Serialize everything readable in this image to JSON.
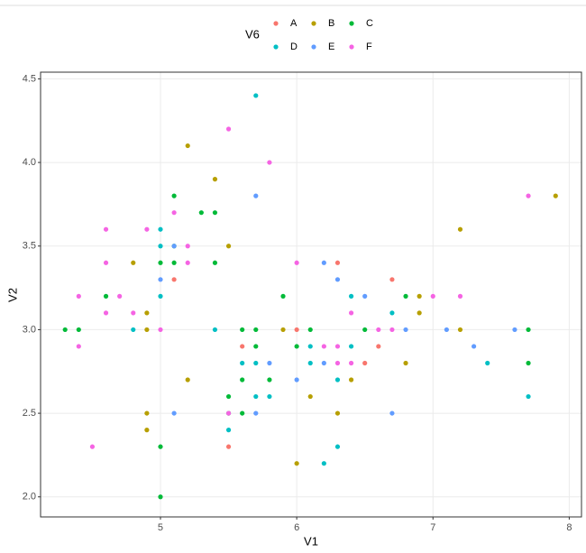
{
  "chart_data": {
    "type": "scatter",
    "x_label": "V1",
    "y_label": "V2",
    "legend_title": "V6",
    "xlim": [
      4.12,
      8.09
    ],
    "ylim": [
      1.88,
      4.54
    ],
    "xticks": [
      5,
      6,
      7,
      8
    ],
    "yticks": [
      {
        "value": 2,
        "label": "2.0"
      },
      2.5,
      {
        "value": 3,
        "label": "3.0"
      },
      3.5,
      {
        "value": 4,
        "label": "4.0"
      },
      4.5
    ],
    "grid": true,
    "series": [
      {
        "name": "A",
        "color": "#F8766D",
        "x": [
          5.1,
          5.6,
          5.5,
          6.0,
          6.3,
          6.5,
          6.6,
          6.7
        ],
        "y": [
          3.3,
          2.9,
          2.3,
          3.0,
          3.4,
          2.8,
          2.9,
          3.3
        ]
      },
      {
        "name": "B",
        "color": "#B79F00",
        "x": [
          5.2,
          5.4,
          5.5,
          4.8,
          4.9,
          4.9,
          4.9,
          4.9,
          5.2,
          5.9,
          6.0,
          6.1,
          6.3,
          6.4,
          6.8,
          6.9,
          6.9,
          7.2,
          7.2,
          7.9
        ],
        "y": [
          4.1,
          3.9,
          3.5,
          3.4,
          3.1,
          3.0,
          2.5,
          2.4,
          2.7,
          3.0,
          2.2,
          2.6,
          2.5,
          2.7,
          2.8,
          3.1,
          3.2,
          3.6,
          3.0,
          3.8
        ]
      },
      {
        "name": "C",
        "color": "#00BA38",
        "x": [
          4.3,
          4.4,
          4.6,
          5.0,
          5.0,
          5.0,
          5.1,
          5.1,
          5.1,
          5.3,
          5.4,
          5.4,
          5.5,
          5.5,
          5.6,
          5.6,
          5.6,
          5.7,
          5.7,
          5.8,
          5.9,
          6.0,
          6.1,
          6.5,
          6.8,
          7.7,
          7.7
        ],
        "y": [
          3.0,
          3.0,
          3.2,
          3.4,
          2.3,
          2.0,
          3.8,
          3.5,
          3.4,
          3.7,
          3.7,
          3.4,
          2.6,
          2.5,
          3.0,
          2.7,
          2.5,
          3.0,
          2.9,
          2.7,
          3.2,
          2.9,
          3.0,
          3.0,
          3.2,
          3.0,
          2.8
        ]
      },
      {
        "name": "D",
        "color": "#00BFC4",
        "x": [
          5.0,
          5.0,
          5.0,
          4.8,
          5.4,
          5.7,
          5.5,
          5.6,
          5.7,
          5.7,
          5.8,
          6.1,
          6.1,
          6.2,
          6.3,
          6.3,
          6.4,
          6.4,
          6.7,
          7.4,
          7.7
        ],
        "y": [
          3.6,
          3.5,
          3.2,
          3.0,
          3.0,
          4.4,
          2.4,
          2.8,
          2.8,
          2.6,
          2.6,
          2.9,
          2.8,
          2.2,
          2.7,
          2.3,
          3.2,
          2.9,
          3.1,
          2.8,
          2.6
        ]
      },
      {
        "name": "E",
        "color": "#619CFF",
        "x": [
          5.0,
          5.1,
          5.1,
          5.7,
          5.7,
          5.8,
          6.0,
          6.2,
          6.3,
          6.2,
          6.5,
          6.7,
          6.8,
          7.1,
          7.3,
          7.6
        ],
        "y": [
          3.3,
          3.5,
          2.5,
          3.8,
          2.5,
          2.8,
          2.7,
          3.4,
          3.3,
          2.8,
          3.2,
          2.5,
          3.0,
          3.0,
          2.9,
          3.0
        ]
      },
      {
        "name": "F",
        "color": "#F564E3",
        "x": [
          4.4,
          4.4,
          4.5,
          4.6,
          4.6,
          4.6,
          4.7,
          4.8,
          4.9,
          5.0,
          5.1,
          5.2,
          5.2,
          5.5,
          5.5,
          5.8,
          6.0,
          6.2,
          6.3,
          6.3,
          6.4,
          6.4,
          6.6,
          6.7,
          7.0,
          7.2,
          7.7
        ],
        "y": [
          3.2,
          2.9,
          2.3,
          3.6,
          3.4,
          3.1,
          3.2,
          3.1,
          3.6,
          3.0,
          3.7,
          3.5,
          3.4,
          4.2,
          2.5,
          4.0,
          3.4,
          2.9,
          2.9,
          2.8,
          3.1,
          2.8,
          3.0,
          3.0,
          3.2,
          3.2,
          3.8
        ]
      }
    ]
  }
}
